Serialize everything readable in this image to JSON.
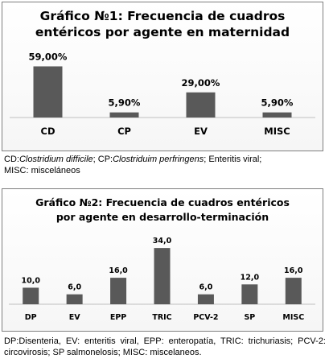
{
  "chart_data": [
    {
      "type": "bar",
      "title": "Gráfico №1: Frecuencia de cuadros entéricos por agente  en maternidad",
      "title_lines": [
        "Gráfico №1: Frecuencia de cuadros",
        "entéricos por agente  en maternidad"
      ],
      "categories": [
        "CD",
        "CP",
        "EV",
        "MISC"
      ],
      "values": [
        59.0,
        5.9,
        29.0,
        5.9
      ],
      "data_labels": [
        "59,00%",
        "5,90%",
        "29,00%",
        "5,90%"
      ],
      "xlabel": "",
      "ylabel": "",
      "ylim": [
        0,
        65
      ],
      "grid": false,
      "bar_color": "#595959"
    },
    {
      "type": "bar",
      "title": "Gráfico №2: Frecuencia de cuadros entéricos por agente en desarrollo-terminación",
      "title_lines": [
        "Gráfico №2: Frecuencia de cuadros entéricos",
        "por agente en desarrollo-terminación"
      ],
      "categories": [
        "DP",
        "EV",
        "EPP",
        "TRIC",
        "PCV-2",
        "SP",
        "MISC"
      ],
      "values": [
        10.0,
        6.0,
        16.0,
        34.0,
        6.0,
        12.0,
        16.0
      ],
      "data_labels": [
        "10,0",
        "6,0",
        "16,0",
        "34,0",
        "6,0",
        "12,0",
        "16,0"
      ],
      "xlabel": "",
      "ylabel": "",
      "ylim": [
        0,
        36
      ],
      "grid": false,
      "bar_color": "#595959"
    }
  ],
  "captions": {
    "caption1": [
      {
        "text": "CD:",
        "italic": false
      },
      {
        "text": "Clostridium difficile",
        "italic": true
      },
      {
        "text": "; CP:",
        "italic": false
      },
      {
        "text": "Clostriduim perfringens",
        "italic": true
      },
      {
        "text": "; Enteritis viral;",
        "italic": false
      },
      {
        "text": " MISC: misceláneos",
        "italic": false,
        "newline": true
      }
    ],
    "caption2": "DP:Disenteria, EV: enteritis viral, EPP: enteropatía, TRIC: trichuriasis; PCV-2: circovirosis; SP salmonelosis; MISC: miscelaneos."
  }
}
